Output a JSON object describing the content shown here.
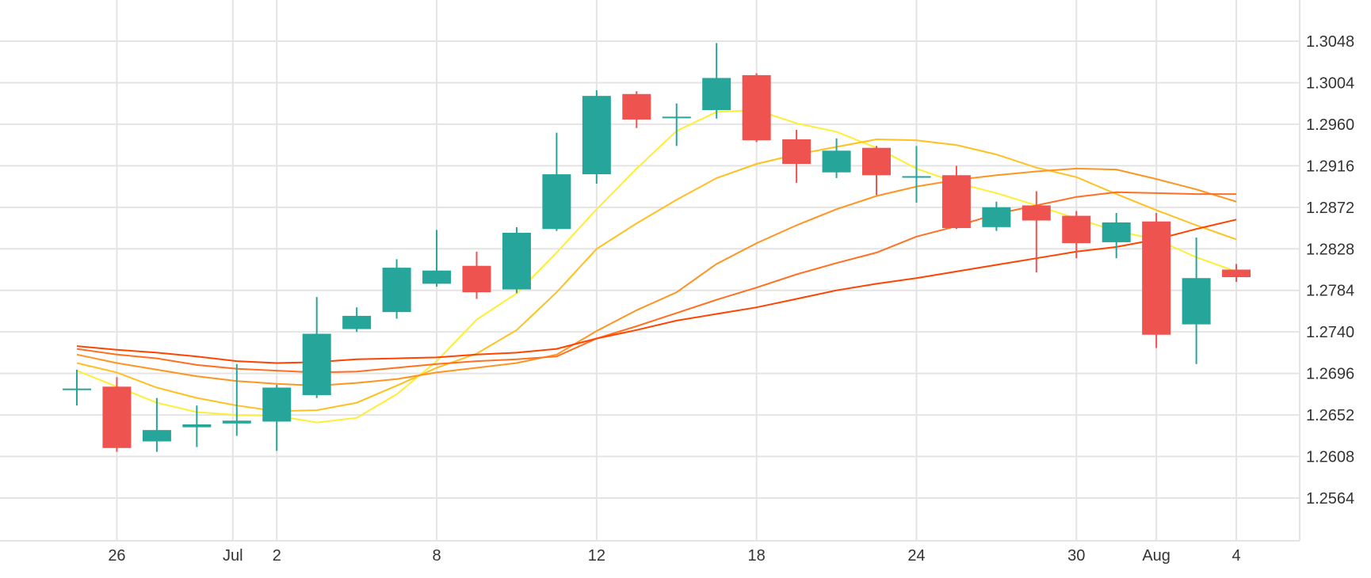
{
  "chart_data": {
    "type": "candlestick",
    "x_tick_labels": [
      "26",
      "Jul",
      "2",
      "8",
      "12",
      "18",
      "24",
      "30",
      "Aug",
      "4"
    ],
    "y_tick_labels": [
      "1.3048",
      "1.3004",
      "1.2960",
      "1.2916",
      "1.2872",
      "1.2828",
      "1.2784",
      "1.2740",
      "1.2696",
      "1.2652",
      "1.2608",
      "1.2564"
    ],
    "y_ticks": [
      1.3048,
      1.3004,
      1.296,
      1.2916,
      1.2872,
      1.2828,
      1.2784,
      1.274,
      1.2696,
      1.2652,
      1.2608,
      1.2564
    ],
    "ylim": [
      1.252,
      1.3092
    ],
    "grid": true,
    "colors": {
      "up": "#26a69a",
      "down": "#ef5350",
      "grid": "#e4e4e4",
      "text": "#333333"
    },
    "candles": [
      {
        "date": "Jun 25",
        "open": 1.2679,
        "high": 1.27,
        "low": 1.2662,
        "close": 1.268
      },
      {
        "date": "Jun 26",
        "open": 1.2682,
        "high": 1.2692,
        "low": 1.2613,
        "close": 1.2617
      },
      {
        "date": "Jun 27",
        "open": 1.2624,
        "high": 1.267,
        "low": 1.2613,
        "close": 1.2636
      },
      {
        "date": "Jun 28",
        "open": 1.2639,
        "high": 1.2662,
        "low": 1.2618,
        "close": 1.2642
      },
      {
        "date": "Jul 1",
        "open": 1.2643,
        "high": 1.2706,
        "low": 1.263,
        "close": 1.2646
      },
      {
        "date": "Jul 2",
        "open": 1.2645,
        "high": 1.2684,
        "low": 1.2614,
        "close": 1.2681
      },
      {
        "date": "Jul 3",
        "open": 1.2673,
        "high": 1.2777,
        "low": 1.267,
        "close": 1.2738
      },
      {
        "date": "Jul 4",
        "open": 1.2743,
        "high": 1.2766,
        "low": 1.274,
        "close": 1.2757
      },
      {
        "date": "Jul 5",
        "open": 1.2761,
        "high": 1.2817,
        "low": 1.2754,
        "close": 1.2808
      },
      {
        "date": "Jul 8",
        "open": 1.2791,
        "high": 1.2848,
        "low": 1.2788,
        "close": 1.2805
      },
      {
        "date": "Jul 9",
        "open": 1.281,
        "high": 1.2825,
        "low": 1.2775,
        "close": 1.2782
      },
      {
        "date": "Jul 10",
        "open": 1.2785,
        "high": 1.2851,
        "low": 1.2781,
        "close": 1.2845
      },
      {
        "date": "Jul 11",
        "open": 1.2849,
        "high": 1.2951,
        "low": 1.2847,
        "close": 1.2907
      },
      {
        "date": "Jul 12",
        "open": 1.2907,
        "high": 1.2996,
        "low": 1.2897,
        "close": 1.299
      },
      {
        "date": "Jul 15",
        "open": 1.2992,
        "high": 1.2995,
        "low": 1.2956,
        "close": 1.2965
      },
      {
        "date": "Jul 16",
        "open": 1.2968,
        "high": 1.2982,
        "low": 1.2937,
        "close": 1.2968
      },
      {
        "date": "Jul 17",
        "open": 1.2975,
        "high": 1.3046,
        "low": 1.2966,
        "close": 1.3009
      },
      {
        "date": "Jul 18",
        "open": 1.3012,
        "high": 1.3014,
        "low": 1.2941,
        "close": 1.2943
      },
      {
        "date": "Jul 19",
        "open": 1.2944,
        "high": 1.2954,
        "low": 1.2898,
        "close": 1.2918
      },
      {
        "date": "Jul 22",
        "open": 1.2909,
        "high": 1.2945,
        "low": 1.2903,
        "close": 1.2932
      },
      {
        "date": "Jul 23",
        "open": 1.2935,
        "high": 1.2937,
        "low": 1.2885,
        "close": 1.2906
      },
      {
        "date": "Jul 24",
        "open": 1.2905,
        "high": 1.2937,
        "low": 1.2877,
        "close": 1.2905
      },
      {
        "date": "Jul 25",
        "open": 1.2906,
        "high": 1.2916,
        "low": 1.2849,
        "close": 1.285
      },
      {
        "date": "Jul 26",
        "open": 1.2851,
        "high": 1.2878,
        "low": 1.2847,
        "close": 1.2872
      },
      {
        "date": "Jul 29",
        "open": 1.2874,
        "high": 1.2889,
        "low": 1.2803,
        "close": 1.2858
      },
      {
        "date": "Jul 30",
        "open": 1.2863,
        "high": 1.2868,
        "low": 1.2818,
        "close": 1.2834
      },
      {
        "date": "Jul 31",
        "open": 1.2835,
        "high": 1.2866,
        "low": 1.2818,
        "close": 1.2856
      },
      {
        "date": "Aug 1",
        "open": 1.2857,
        "high": 1.2866,
        "low": 1.2723,
        "close": 1.2737
      },
      {
        "date": "Aug 2",
        "open": 1.2748,
        "high": 1.284,
        "low": 1.2706,
        "close": 1.2797
      },
      {
        "date": "Aug 5",
        "open": 1.2806,
        "high": 1.2812,
        "low": 1.2793,
        "close": 1.2798
      }
    ],
    "moving_averages": [
      {
        "color": "#ffee33",
        "values": [
          1.2699,
          1.2682,
          1.2665,
          1.2655,
          1.2652,
          1.2651,
          1.2644,
          1.2649,
          1.2674,
          1.2709,
          1.2753,
          1.2781,
          1.2824,
          1.287,
          1.2913,
          1.2953,
          1.2973,
          1.2975,
          1.2961,
          1.2952,
          1.2935,
          1.2913,
          1.2898,
          1.2887,
          1.2874,
          1.286,
          1.2847,
          1.2838,
          1.2819,
          1.2804
        ]
      },
      {
        "color": "#ffc020",
        "values": [
          1.2707,
          1.2697,
          1.2681,
          1.267,
          1.2662,
          1.2656,
          1.2657,
          1.2665,
          1.2683,
          1.2702,
          1.2717,
          1.2742,
          1.2782,
          1.2828,
          1.2855,
          1.288,
          1.2903,
          1.2918,
          1.2928,
          1.2936,
          1.2944,
          1.2943,
          1.2938,
          1.2928,
          1.2914,
          1.2904,
          1.2886,
          1.2869,
          1.2853,
          1.2838
        ]
      },
      {
        "color": "#ff9420",
        "values": [
          1.2716,
          1.2707,
          1.27,
          1.2693,
          1.2688,
          1.2685,
          1.2683,
          1.2686,
          1.269,
          1.2697,
          1.2702,
          1.2707,
          1.2716,
          1.2741,
          1.2763,
          1.2782,
          1.2812,
          1.2834,
          1.2853,
          1.287,
          1.2884,
          1.2894,
          1.2901,
          1.2906,
          1.291,
          1.2913,
          1.2912,
          1.2902,
          1.2891,
          1.2878
        ]
      },
      {
        "color": "#ff7020",
        "values": [
          1.2722,
          1.2716,
          1.2712,
          1.2705,
          1.2701,
          1.2699,
          1.2697,
          1.2698,
          1.2702,
          1.2706,
          1.2709,
          1.2711,
          1.2714,
          1.2733,
          1.2746,
          1.276,
          1.2774,
          1.2787,
          1.2801,
          1.2813,
          1.2824,
          1.2841,
          1.2852,
          1.2865,
          1.2874,
          1.2883,
          1.2888,
          1.2887,
          1.2886,
          1.2886
        ]
      },
      {
        "color": "#ff4400",
        "values": [
          1.2725,
          1.2721,
          1.2718,
          1.2714,
          1.2709,
          1.2707,
          1.2708,
          1.2711,
          1.2712,
          1.2713,
          1.2716,
          1.2718,
          1.2722,
          1.2733,
          1.2742,
          1.2752,
          1.2759,
          1.2766,
          1.2775,
          1.2784,
          1.2791,
          1.2797,
          1.2804,
          1.2811,
          1.2818,
          1.2825,
          1.283,
          1.2838,
          1.2849,
          1.2859
        ]
      }
    ]
  }
}
